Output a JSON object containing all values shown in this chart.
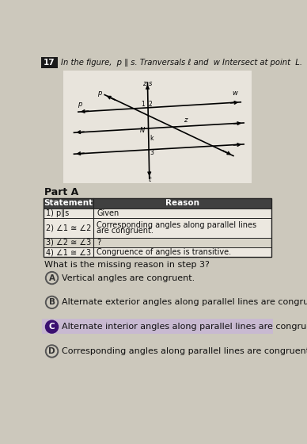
{
  "title": "In the figure,  p ∥ s. Tranversals ℓ and  w Intersect at point  L.",
  "question_num": "17",
  "bg_color": "#ccc8bc",
  "fig_bg": "#e8e4dc",
  "part_a_label": "Part A",
  "table_headers": [
    "Statement",
    "Reason"
  ],
  "table_rows": [
    [
      "1) p∥s",
      "Given"
    ],
    [
      "2) ∠1 ≅ ∠2",
      "Corresponding angles along parallel lines\nare congruent."
    ],
    [
      "3) ∠2 ≅ ∠3",
      "?"
    ],
    [
      "4) ∠1 ≅ ∠3",
      "Congruence of angles is transitive."
    ]
  ],
  "question_text": "What is the missing reason in step 3?",
  "choices": [
    {
      "label": "A",
      "text": "Vertical angles are congruent.",
      "selected": false
    },
    {
      "label": "B",
      "text": "Alternate exterior angles along parallel lines are congruent.",
      "selected": false
    },
    {
      "label": "C",
      "text": "Alternate interior angles along parallel lines are congruent.",
      "selected": true
    },
    {
      "label": "D",
      "text": "Corresponding angles along parallel lines are congruent.",
      "selected": false
    }
  ],
  "selected_bg": "#c8b8d4",
  "circle_unsel_color": "#555555",
  "selected_circle_color": "#3a1070",
  "header_bg": "#404040",
  "header_fg": "#ffffff",
  "row_highlight_bg": "#d8d4c8",
  "normal_row_bg": "#ece8e0",
  "table_border": "#222222"
}
